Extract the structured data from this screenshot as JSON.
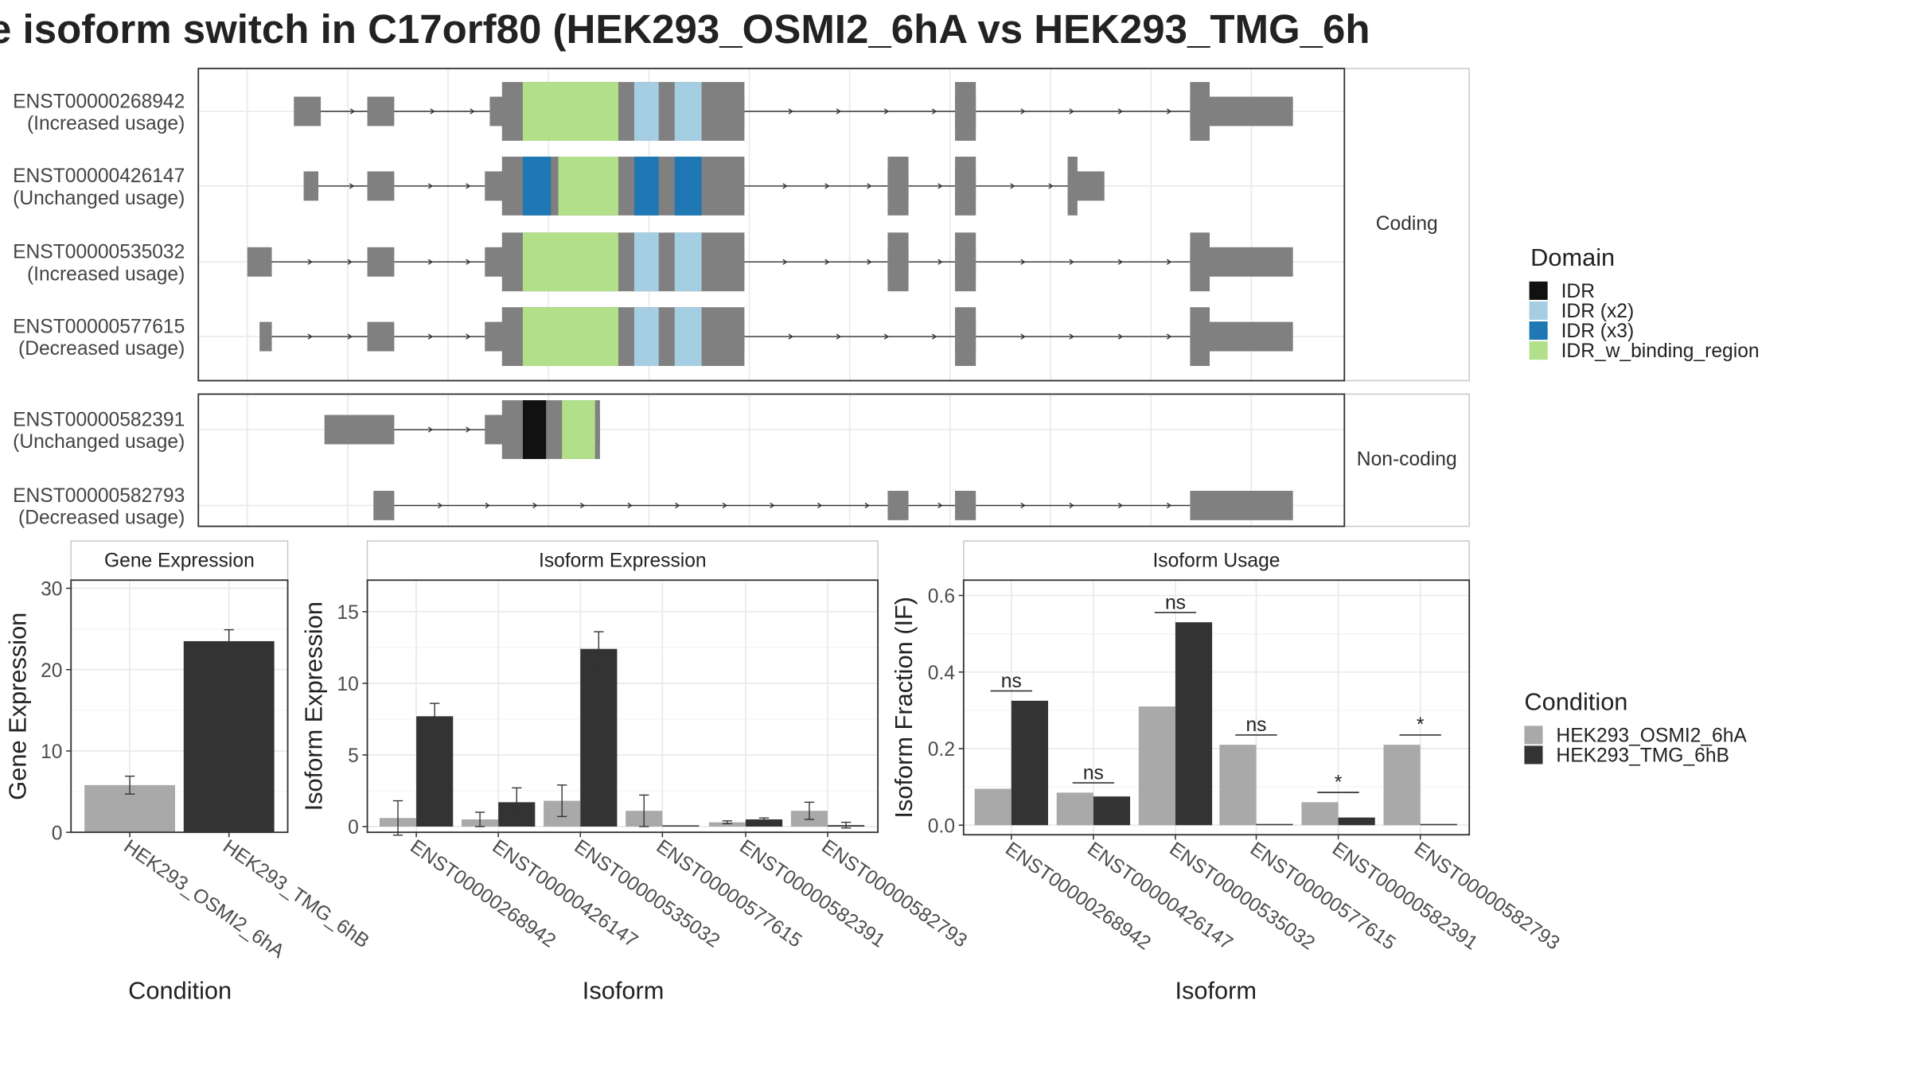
{
  "title": "e isoform switch in C17orf80 (HEK293_OSMI2_6hA vs HEK293_TMG_6h",
  "colors": {
    "exon": "#808080",
    "cond_a": "#a9a9a9",
    "cond_b": "#333333",
    "IDR": "#111111",
    "IDR (x2)": "#a6cee3",
    "IDR (x3)": "#1f78b4",
    "IDR_w_binding_region": "#b2df8a"
  },
  "structure": {
    "facets": [
      "Coding",
      "Non-coding"
    ],
    "legend_title": "Domain",
    "legend_items": [
      "IDR",
      "IDR (x2)",
      "IDR (x3)",
      "IDR_w_binding_region"
    ],
    "transcripts": [
      {
        "id": "ENST00000268942",
        "usage": "(Increased usage)",
        "facet": "Coding",
        "exons": [
          [
            240,
            262
          ],
          [
            300,
            322
          ],
          [
            400,
            608
          ],
          [
            780,
            797
          ],
          [
            972,
            1056
          ]
        ],
        "cds": [
          [
            410,
            608
          ],
          [
            780,
            797
          ],
          [
            972,
            988
          ]
        ],
        "domains": [
          {
            "type": "IDR_w_binding_region",
            "start": 427,
            "end": 505
          },
          {
            "type": "IDR (x2)",
            "start": 518,
            "end": 538
          },
          {
            "type": "IDR (x2)",
            "start": 551,
            "end": 573
          }
        ]
      },
      {
        "id": "ENST00000426147",
        "usage": "(Unchanged usage)",
        "facet": "Coding",
        "exons": [
          [
            248,
            260
          ],
          [
            300,
            322
          ],
          [
            396,
            608
          ],
          [
            725,
            742
          ],
          [
            780,
            797
          ],
          [
            872,
            902
          ]
        ],
        "cds": [
          [
            410,
            608
          ],
          [
            725,
            742
          ],
          [
            780,
            797
          ],
          [
            872,
            880
          ]
        ],
        "domains": [
          {
            "type": "IDR (x3)",
            "start": 427,
            "end": 450
          },
          {
            "type": "IDR_w_binding_region",
            "start": 456,
            "end": 505
          },
          {
            "type": "IDR (x3)",
            "start": 518,
            "end": 538
          },
          {
            "type": "IDR (x3)",
            "start": 551,
            "end": 573
          }
        ]
      },
      {
        "id": "ENST00000535032",
        "usage": "(Increased usage)",
        "facet": "Coding",
        "exons": [
          [
            202,
            222
          ],
          [
            300,
            322
          ],
          [
            396,
            608
          ],
          [
            725,
            742
          ],
          [
            780,
            797
          ],
          [
            972,
            1056
          ]
        ],
        "cds": [
          [
            410,
            608
          ],
          [
            725,
            742
          ],
          [
            780,
            797
          ],
          [
            972,
            988
          ]
        ],
        "domains": [
          {
            "type": "IDR_w_binding_region",
            "start": 427,
            "end": 505
          },
          {
            "type": "IDR (x2)",
            "start": 518,
            "end": 538
          },
          {
            "type": "IDR (x2)",
            "start": 551,
            "end": 573
          }
        ]
      },
      {
        "id": "ENST00000577615",
        "usage": "(Decreased usage)",
        "facet": "Coding",
        "exons": [
          [
            212,
            222
          ],
          [
            300,
            322
          ],
          [
            396,
            608
          ],
          [
            780,
            797
          ],
          [
            972,
            1056
          ]
        ],
        "cds": [
          [
            410,
            608
          ],
          [
            780,
            797
          ],
          [
            972,
            988
          ]
        ],
        "domains": [
          {
            "type": "IDR_w_binding_region",
            "start": 427,
            "end": 505
          },
          {
            "type": "IDR (x2)",
            "start": 518,
            "end": 538
          },
          {
            "type": "IDR (x2)",
            "start": 551,
            "end": 573
          }
        ]
      },
      {
        "id": "ENST00000582391",
        "usage": "(Unchanged usage)",
        "facet": "Non-coding",
        "exons": [
          [
            265,
            322
          ],
          [
            396,
            490
          ]
        ],
        "cds": [
          [
            410,
            490
          ]
        ],
        "domains": [
          {
            "type": "IDR",
            "start": 427,
            "end": 446
          },
          {
            "type": "IDR_w_binding_region",
            "start": 459,
            "end": 486
          }
        ]
      },
      {
        "id": "ENST00000582793",
        "usage": "(Decreased usage)",
        "facet": "Non-coding",
        "exons": [
          [
            305,
            322
          ],
          [
            725,
            742
          ],
          [
            780,
            797
          ],
          [
            972,
            1056
          ]
        ],
        "cds": [],
        "domains": []
      }
    ]
  },
  "chart_data": [
    {
      "type": "bar",
      "title": "Gene Expression",
      "xlabel": "Condition",
      "ylabel": "Gene Expression",
      "categories": [
        "HEK293_OSMI2_6hA",
        "HEK293_TMG_6hB"
      ],
      "values": [
        5.8,
        23.5
      ],
      "errors": [
        1.1,
        1.4
      ],
      "ylim": [
        0,
        31
      ],
      "yticks": [
        0,
        10,
        20,
        30
      ]
    },
    {
      "type": "bar",
      "title": "Isoform Expression",
      "xlabel": "Isoform",
      "ylabel": "Isoform Expression",
      "categories": [
        "ENST00000268942",
        "ENST00000426147",
        "ENST00000535032",
        "ENST00000577615",
        "ENST00000582391",
        "ENST00000582793"
      ],
      "series": [
        {
          "name": "HEK293_OSMI2_6hA",
          "values": [
            0.6,
            0.5,
            1.8,
            1.1,
            0.3,
            1.1
          ],
          "errors": [
            1.2,
            0.5,
            1.1,
            1.1,
            0.1,
            0.6
          ]
        },
        {
          "name": "HEK293_TMG_6hB",
          "values": [
            7.7,
            1.7,
            12.4,
            0.0,
            0.5,
            0.1
          ],
          "errors": [
            0.9,
            1.0,
            1.2,
            0.0,
            0.1,
            0.2
          ]
        }
      ],
      "ylim": [
        -0.4,
        17.2
      ],
      "yticks": [
        0,
        5,
        10,
        15
      ]
    },
    {
      "type": "bar",
      "title": "Isoform Usage",
      "xlabel": "Isoform",
      "ylabel": "Isoform Fraction (IF)",
      "categories": [
        "ENST00000268942",
        "ENST00000426147",
        "ENST00000535032",
        "ENST00000577615",
        "ENST00000582391",
        "ENST00000582793"
      ],
      "series": [
        {
          "name": "HEK293_OSMI2_6hA",
          "values": [
            0.095,
            0.085,
            0.31,
            0.21,
            0.06,
            0.21
          ]
        },
        {
          "name": "HEK293_TMG_6hB",
          "values": [
            0.325,
            0.075,
            0.53,
            0.0,
            0.02,
            0.003
          ]
        }
      ],
      "significance": [
        "ns",
        "ns",
        "ns",
        "ns",
        "*",
        "*"
      ],
      "ylim": [
        -0.025,
        0.64
      ],
      "yticks": [
        0.0,
        0.2,
        0.4,
        0.6
      ]
    }
  ],
  "condition_legend": {
    "title": "Condition",
    "items": [
      "HEK293_OSMI2_6hA",
      "HEK293_TMG_6hB"
    ]
  }
}
